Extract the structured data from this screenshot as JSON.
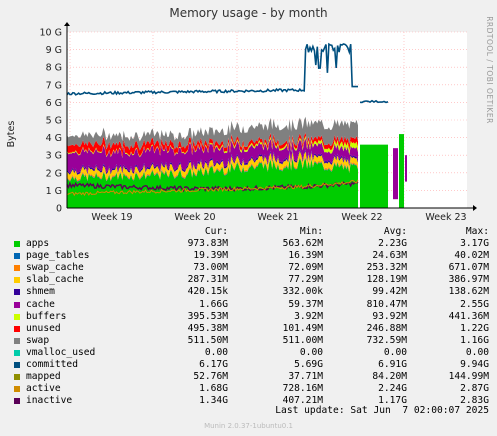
{
  "chart_data": {
    "type": "area",
    "title": "Memory usage - by month",
    "ylabel": "Bytes",
    "side_label": "RRDTOOL / TOBI OETIKER",
    "ylim": [
      0,
      10
    ],
    "y_unit": "G",
    "y_ticks": [
      "0",
      "1 G",
      "2 G",
      "3 G",
      "4 G",
      "5 G",
      "6 G",
      "7 G",
      "8 G",
      "9 G",
      "10 G"
    ],
    "x_ticks": [
      "Week 19",
      "Week 20",
      "Week 21",
      "Week 22",
      "Week 23"
    ],
    "colors": {
      "background": "#f0f0f0",
      "plot_bg": "#ffffff",
      "grid": "#ffaaaa",
      "apps": "#00cc00",
      "page_tables": "#0066b3",
      "swap_cache": "#ff8000",
      "slab_cache": "#ffcc00",
      "shmem": "#330099",
      "cache": "#990099",
      "buffers": "#ccff00",
      "unused": "#ff0000",
      "swap": "#808080",
      "committed": "#004f7f",
      "mapped": "#8f8f00",
      "active": "#d08c00",
      "inactive": "#5a0057"
    },
    "series_note": "approximate stacked values in G per time sample",
    "stack_profile": {
      "apps": [
        1.7,
        1.8,
        1.9,
        2.3,
        2.5,
        2.2,
        0.0,
        0.0
      ],
      "page_tables": [
        0.03,
        0.03,
        0.03,
        0.03,
        0.03,
        0.03,
        0.0,
        0.0
      ],
      "swap_cache": [
        0.07,
        0.07,
        0.07,
        0.07,
        0.07,
        0.07,
        0.0,
        0.0
      ],
      "slab_cache": [
        0.3,
        0.3,
        0.3,
        0.3,
        0.3,
        0.3,
        0.0,
        0.0
      ],
      "shmem": [
        0.1,
        0.1,
        0.1,
        0.1,
        0.1,
        0.1,
        0.0,
        0.0
      ],
      "cache": [
        1.0,
        0.9,
        0.9,
        0.7,
        0.6,
        0.5,
        0.0,
        0.0
      ],
      "buffers": [
        0.05,
        0.05,
        0.05,
        0.1,
        0.1,
        0.3,
        0.0,
        0.0
      ],
      "unused": [
        0.4,
        0.4,
        0.3,
        0.2,
        0.2,
        0.3,
        0.0,
        0.0
      ],
      "swap": [
        0.51,
        0.51,
        0.51,
        0.8,
        0.9,
        0.9,
        0.0,
        0.0
      ]
    },
    "committed_line": [
      6.45,
      6.6,
      6.65,
      6.65,
      6.7,
      9.1,
      6.05,
      5.9
    ],
    "inactive_line": [
      1.3,
      1.2,
      1.1,
      1.1,
      1.2,
      1.4,
      0.0,
      0.0
    ],
    "active_line": [
      0.8,
      0.9,
      1.0,
      1.1,
      1.2,
      1.5,
      0.0,
      0.0
    ],
    "legend": {
      "header": {
        "cur": "Cur:",
        "min": "Min:",
        "avg": "Avg:",
        "max": "Max:"
      },
      "rows": [
        {
          "name": "apps",
          "color": "#00cc00",
          "cur": "973.83M",
          "min": "563.62M",
          "avg": "2.23G",
          "max": "3.17G"
        },
        {
          "name": "page_tables",
          "color": "#0066b3",
          "cur": "19.39M",
          "min": "16.39M",
          "avg": "24.63M",
          "max": "40.02M"
        },
        {
          "name": "swap_cache",
          "color": "#ff8000",
          "cur": "73.00M",
          "min": "72.09M",
          "avg": "253.32M",
          "max": "671.07M"
        },
        {
          "name": "slab_cache",
          "color": "#ffcc00",
          "cur": "287.31M",
          "min": "77.29M",
          "avg": "128.19M",
          "max": "386.97M"
        },
        {
          "name": "shmem",
          "color": "#330099",
          "cur": "420.15k",
          "min": "332.00k",
          "avg": "99.42M",
          "max": "138.62M"
        },
        {
          "name": "cache",
          "color": "#990099",
          "cur": "1.66G",
          "min": "59.37M",
          "avg": "810.47M",
          "max": "2.55G"
        },
        {
          "name": "buffers",
          "color": "#ccff00",
          "cur": "395.53M",
          "min": "3.92M",
          "avg": "93.92M",
          "max": "441.36M"
        },
        {
          "name": "unused",
          "color": "#ff0000",
          "cur": "495.38M",
          "min": "101.49M",
          "avg": "246.88M",
          "max": "1.22G"
        },
        {
          "name": "swap",
          "color": "#808080",
          "cur": "511.50M",
          "min": "511.00M",
          "avg": "732.59M",
          "max": "1.16G"
        },
        {
          "name": "vmalloc_used",
          "color": "#00ccaa",
          "cur": "0.00",
          "min": "0.00",
          "avg": "0.00",
          "max": "0.00"
        },
        {
          "name": "committed",
          "color": "#004f7f",
          "cur": "6.17G",
          "min": "5.69G",
          "avg": "6.91G",
          "max": "9.94G"
        },
        {
          "name": "mapped",
          "color": "#8f8f00",
          "cur": "52.76M",
          "min": "37.71M",
          "avg": "84.20M",
          "max": "144.99M"
        },
        {
          "name": "active",
          "color": "#d08c00",
          "cur": "1.68G",
          "min": "728.16M",
          "avg": "2.24G",
          "max": "2.87G"
        },
        {
          "name": "inactive",
          "color": "#5a0057",
          "cur": "1.34G",
          "min": "407.21M",
          "avg": "1.17G",
          "max": "2.83G"
        }
      ]
    },
    "last_update": "Last update: Sat Jun  7 02:00:07 2025",
    "footer": "Munin 2.0.37-1ubuntu0.1"
  }
}
